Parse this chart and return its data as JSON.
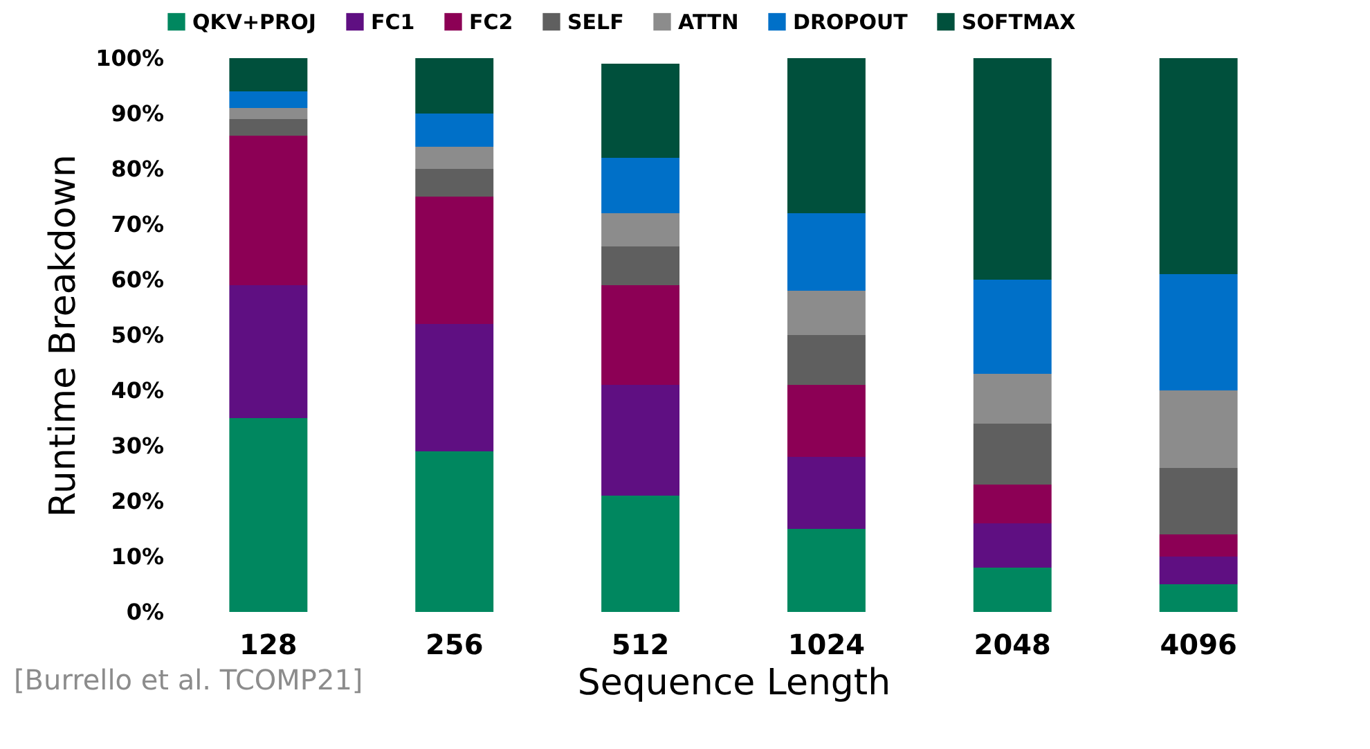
{
  "chart_data": {
    "type": "bar",
    "stacked": true,
    "xlabel": "Sequence Length",
    "ylabel": "Runtime Breakdown",
    "categories": [
      "128",
      "256",
      "512",
      "1024",
      "2048",
      "4096"
    ],
    "series": [
      {
        "name": "QKV+PROJ",
        "color": "#00875f",
        "values": [
          35,
          29,
          21,
          15,
          8,
          5
        ]
      },
      {
        "name": "FC1",
        "color": "#5f0f82",
        "values": [
          24,
          23,
          20,
          13,
          8,
          5
        ]
      },
      {
        "name": "FC2",
        "color": "#8c0055",
        "values": [
          27,
          23,
          18,
          13,
          7,
          4
        ]
      },
      {
        "name": "SELF",
        "color": "#5f5f5f",
        "values": [
          3,
          5,
          7,
          9,
          11,
          12
        ]
      },
      {
        "name": "ATTN",
        "color": "#8c8c8c",
        "values": [
          2,
          4,
          6,
          8,
          9,
          14
        ]
      },
      {
        "name": "DROPOUT",
        "color": "#0070c8",
        "values": [
          3,
          6,
          10,
          14,
          17,
          21
        ]
      },
      {
        "name": "SOFTMAX",
        "color": "#00503c",
        "values": [
          6,
          10,
          17,
          28,
          40,
          39
        ]
      }
    ],
    "ylim": [
      0,
      100
    ],
    "yticks": [
      {
        "value": 0,
        "label": "0%"
      },
      {
        "value": 10,
        "label": "10%"
      },
      {
        "value": 20,
        "label": "20%"
      },
      {
        "value": 30,
        "label": "30%"
      },
      {
        "value": 40,
        "label": "40%"
      },
      {
        "value": 50,
        "label": "50%"
      },
      {
        "value": 60,
        "label": "60%"
      },
      {
        "value": 70,
        "label": "70%"
      },
      {
        "value": 80,
        "label": "80%"
      },
      {
        "value": 90,
        "label": "90%"
      },
      {
        "value": 100,
        "label": "100%"
      }
    ],
    "grid": false,
    "legend": "top",
    "annotations": [
      "[Burrello et al. TCOMP21]"
    ]
  }
}
